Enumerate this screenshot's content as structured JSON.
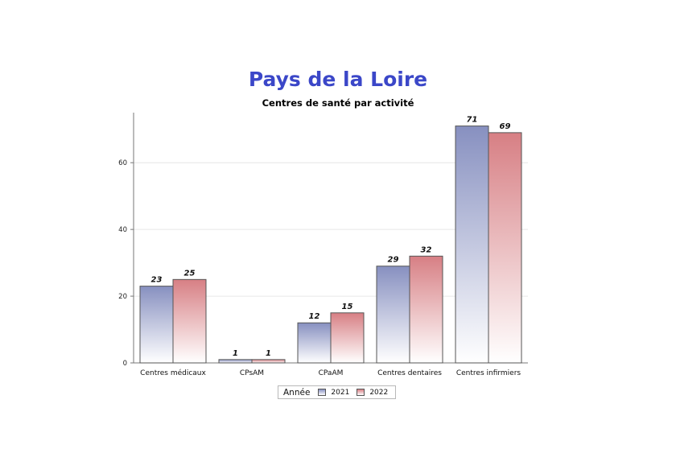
{
  "chart_data": {
    "type": "bar",
    "title": "Pays de la Loire",
    "subtitle": "Centres de santé par activité",
    "categories": [
      "Centres médicaux",
      "CPsAM",
      "CPaAM",
      "Centres dentaires",
      "Centres infirmiers"
    ],
    "series": [
      {
        "name": "2021",
        "color": "#8790c0",
        "values": [
          23,
          1,
          12,
          29,
          71
        ]
      },
      {
        "name": "2022",
        "color": "#d77f84",
        "values": [
          25,
          1,
          15,
          32,
          69
        ]
      }
    ],
    "yticks": [
      0,
      20,
      40,
      60
    ],
    "ylim": [
      0,
      75
    ],
    "grid": true,
    "legend": {
      "title": "Année",
      "position": "bottom-center"
    }
  }
}
